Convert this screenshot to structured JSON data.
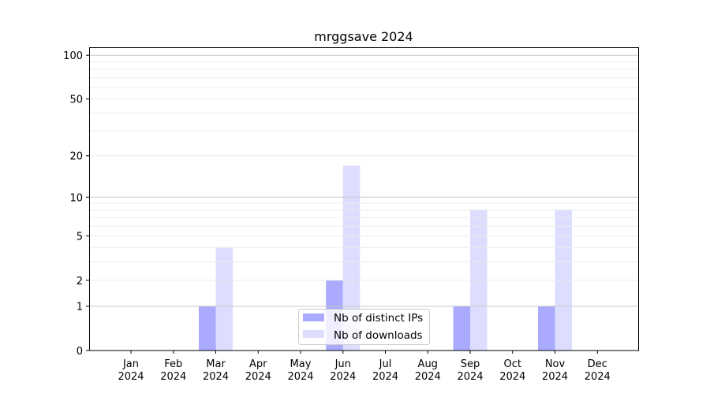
{
  "chart_data": {
    "type": "bar",
    "title": "mrggsave 2024",
    "xlabel": "",
    "ylabel": "",
    "categories": [
      "Jan\n2024",
      "Feb\n2024",
      "Mar\n2024",
      "Apr\n2024",
      "May\n2024",
      "Jun\n2024",
      "Jul\n2024",
      "Aug\n2024",
      "Sep\n2024",
      "Oct\n2024",
      "Nov\n2024",
      "Dec\n2024"
    ],
    "series": [
      {
        "name": "Nb of distinct IPs",
        "color": "#aaaaff",
        "values": [
          0,
          0,
          1,
          0,
          0,
          2,
          0,
          0,
          1,
          0,
          1,
          0
        ]
      },
      {
        "name": "Nb of downloads",
        "color": "#ddddff",
        "values": [
          0,
          0,
          4,
          0,
          0,
          17,
          0,
          0,
          8,
          0,
          8,
          0
        ]
      }
    ],
    "yscale": "log(1+y)",
    "yticks": [
      0,
      1,
      2,
      5,
      10,
      20,
      50,
      100
    ],
    "ytick_labels": [
      "0",
      "1",
      "2",
      "5",
      "10",
      "20",
      "50",
      "100"
    ],
    "ylim": [
      0,
      113
    ],
    "grid": true,
    "legend": "lower center"
  }
}
